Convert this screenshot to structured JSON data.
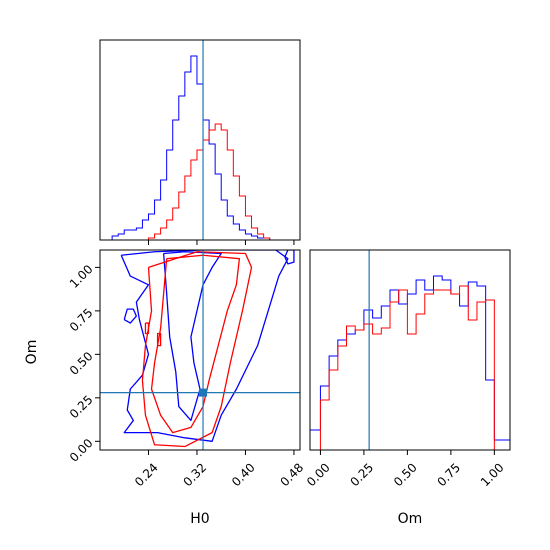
{
  "chart_data": {
    "type": "corner",
    "parameters": [
      "H0",
      "Om"
    ],
    "truth": {
      "H0": 0.33,
      "Om": 0.28
    },
    "truth_color": "#1f77b4",
    "series_colors": [
      "#0000ff",
      "#ff0000"
    ],
    "panels": [
      {
        "id": "hist-H0",
        "type": "histogram",
        "xlim": [
          0.16,
          0.49
        ],
        "ylim": [
          0,
          1.0
        ],
        "xticks": [
          0.24,
          0.32,
          0.4,
          0.48
        ],
        "series": [
          {
            "color": "#0000ff",
            "edges": [
              0.18,
              0.19,
              0.2,
              0.21,
              0.22,
              0.23,
              0.24,
              0.25,
              0.26,
              0.27,
              0.28,
              0.29,
              0.3,
              0.31,
              0.32,
              0.33,
              0.34,
              0.35,
              0.36,
              0.37,
              0.38,
              0.39,
              0.4,
              0.41,
              0.42,
              0.43,
              0.44
            ],
            "values": [
              0.02,
              0.03,
              0.05,
              0.05,
              0.06,
              0.1,
              0.13,
              0.2,
              0.3,
              0.45,
              0.6,
              0.72,
              0.84,
              0.92,
              0.78,
              0.6,
              0.48,
              0.33,
              0.2,
              0.12,
              0.08,
              0.05,
              0.03,
              0.02,
              0.01,
              0.01
            ]
          },
          {
            "color": "#ff0000",
            "edges": [
              0.24,
              0.25,
              0.26,
              0.27,
              0.28,
              0.29,
              0.3,
              0.31,
              0.32,
              0.33,
              0.34,
              0.35,
              0.36,
              0.37,
              0.38,
              0.39,
              0.4,
              0.41,
              0.42,
              0.43,
              0.44
            ],
            "values": [
              0.01,
              0.03,
              0.06,
              0.1,
              0.16,
              0.24,
              0.32,
              0.4,
              0.45,
              0.5,
              0.55,
              0.58,
              0.55,
              0.45,
              0.32,
              0.22,
              0.12,
              0.06,
              0.03,
              0.01
            ]
          }
        ]
      },
      {
        "id": "hist-Om",
        "type": "histogram",
        "xlim": [
          -0.06,
          1.09
        ],
        "ylim": [
          0,
          1.0
        ],
        "xticks": [
          0.0,
          0.25,
          0.5,
          0.75,
          1.0
        ],
        "xticklabels": [
          "0.00",
          "0.25",
          "0.50",
          "0.75",
          "1.00"
        ],
        "xlabel": "Om",
        "series": [
          {
            "color": "#0000ff",
            "edges": [
              -0.06,
              0.0,
              0.05,
              0.1,
              0.15,
              0.2,
              0.25,
              0.3,
              0.35,
              0.4,
              0.45,
              0.5,
              0.55,
              0.6,
              0.65,
              0.7,
              0.75,
              0.8,
              0.85,
              0.9,
              0.95,
              1.0,
              1.05,
              1.09
            ],
            "values": [
              0.1,
              0.32,
              0.47,
              0.55,
              0.58,
              0.6,
              0.7,
              0.66,
              0.72,
              0.8,
              0.73,
              0.78,
              0.85,
              0.8,
              0.87,
              0.85,
              0.78,
              0.72,
              0.84,
              0.82,
              0.35,
              0.05,
              0.05
            ]
          },
          {
            "color": "#ff0000",
            "edges": [
              0.0,
              0.05,
              0.1,
              0.15,
              0.2,
              0.25,
              0.3,
              0.35,
              0.4,
              0.45,
              0.5,
              0.55,
              0.6,
              0.65,
              0.7,
              0.75,
              0.8,
              0.85,
              0.9,
              0.95,
              1.0
            ],
            "values": [
              0.25,
              0.4,
              0.52,
              0.62,
              0.6,
              0.63,
              0.58,
              0.61,
              0.74,
              0.8,
              0.58,
              0.68,
              0.78,
              0.8,
              0.8,
              0.78,
              0.82,
              0.65,
              0.74,
              0.75
            ]
          }
        ]
      },
      {
        "id": "contour-H0-Om",
        "type": "contour",
        "xlim": [
          0.16,
          0.49
        ],
        "ylim": [
          -0.05,
          1.1
        ],
        "xticks": [
          0.24,
          0.32,
          0.4,
          0.48
        ],
        "xticklabels": [
          "0.24",
          "0.32",
          "0.40",
          "0.48"
        ],
        "yticks": [
          0.0,
          0.25,
          0.5,
          0.75,
          1.0
        ],
        "yticklabels": [
          "0.00",
          "0.25",
          "0.50",
          "0.75",
          "1.00"
        ],
        "xlabel": "H0",
        "ylabel": "Om",
        "series": [
          {
            "color": "#0000ff",
            "contours": [
              [
                [
                  0.265,
                  1.08
                ],
                [
                  0.27,
                  0.85
                ],
                [
                  0.275,
                  0.6
                ],
                [
                  0.285,
                  0.4
                ],
                [
                  0.29,
                  0.2
                ],
                [
                  0.31,
                  0.12
                ],
                [
                  0.325,
                  0.3
                ],
                [
                  0.315,
                  0.45
                ],
                [
                  0.31,
                  0.6
                ],
                [
                  0.32,
                  0.75
                ],
                [
                  0.33,
                  0.9
                ],
                [
                  0.345,
                  1.0
                ],
                [
                  0.36,
                  1.08
                ],
                [
                  0.3,
                  1.09
                ],
                [
                  0.265,
                  1.08
                ]
              ],
              [
                [
                  0.195,
                  1.07
                ],
                [
                  0.25,
                  1.09
                ],
                [
                  0.33,
                  1.1
                ],
                [
                  0.45,
                  1.1
                ],
                [
                  0.47,
                  1.05
                ],
                [
                  0.455,
                  0.95
                ],
                [
                  0.42,
                  0.55
                ],
                [
                  0.385,
                  0.3
                ],
                [
                  0.36,
                  0.15
                ],
                [
                  0.345,
                  0.0
                ],
                [
                  0.3,
                  0.02
                ],
                [
                  0.255,
                  0.05
                ],
                [
                  0.23,
                  0.05
                ],
                [
                  0.2,
                  0.05
                ],
                [
                  0.215,
                  0.12
                ],
                [
                  0.205,
                  0.18
                ],
                [
                  0.21,
                  0.3
                ],
                [
                  0.23,
                  0.38
                ],
                [
                  0.24,
                  0.5
                ],
                [
                  0.225,
                  0.7
                ],
                [
                  0.22,
                  0.8
                ],
                [
                  0.24,
                  0.9
                ],
                [
                  0.21,
                  0.95
                ],
                [
                  0.195,
                  1.07
                ]
              ],
              [
                [
                  0.2,
                  0.7
                ],
                [
                  0.205,
                  0.76
                ],
                [
                  0.215,
                  0.76
                ],
                [
                  0.22,
                  0.72
                ],
                [
                  0.21,
                  0.68
                ],
                [
                  0.2,
                  0.7
                ]
              ],
              [
                [
                  0.465,
                  1.06
                ],
                [
                  0.47,
                  1.1
                ],
                [
                  0.48,
                  1.1
                ],
                [
                  0.48,
                  1.03
                ],
                [
                  0.47,
                  1.02
                ],
                [
                  0.465,
                  1.06
                ]
              ]
            ]
          },
          {
            "color": "#ff0000",
            "contours": [
              [
                [
                  0.27,
                  1.05
                ],
                [
                  0.265,
                  0.85
                ],
                [
                  0.26,
                  0.65
                ],
                [
                  0.25,
                  0.45
                ],
                [
                  0.245,
                  0.3
                ],
                [
                  0.26,
                  0.15
                ],
                [
                  0.28,
                  0.05
                ],
                [
                  0.31,
                  0.08
                ],
                [
                  0.33,
                  0.2
                ],
                [
                  0.34,
                  0.35
                ],
                [
                  0.355,
                  0.55
                ],
                [
                  0.37,
                  0.75
                ],
                [
                  0.385,
                  0.9
                ],
                [
                  0.39,
                  1.05
                ],
                [
                  0.33,
                  1.07
                ],
                [
                  0.27,
                  1.05
                ]
              ],
              [
                [
                  0.24,
                  1.0
                ],
                [
                  0.245,
                  0.75
                ],
                [
                  0.235,
                  0.55
                ],
                [
                  0.23,
                  0.35
                ],
                [
                  0.235,
                  0.15
                ],
                [
                  0.25,
                  -0.02
                ],
                [
                  0.3,
                  -0.03
                ],
                [
                  0.345,
                  0.05
                ],
                [
                  0.36,
                  0.2
                ],
                [
                  0.375,
                  0.45
                ],
                [
                  0.395,
                  0.75
                ],
                [
                  0.41,
                  1.0
                ],
                [
                  0.4,
                  1.08
                ],
                [
                  0.32,
                  1.09
                ],
                [
                  0.24,
                  1.0
                ]
              ],
              [
                [
                  0.235,
                  0.68
                ],
                [
                  0.235,
                  0.62
                ],
                [
                  0.24,
                  0.62
                ],
                [
                  0.24,
                  0.68
                ],
                [
                  0.235,
                  0.68
                ]
              ],
              [
                [
                  0.255,
                  0.55
                ],
                [
                  0.255,
                  0.62
                ],
                [
                  0.26,
                  0.62
                ],
                [
                  0.26,
                  0.55
                ],
                [
                  0.255,
                  0.55
                ]
              ]
            ]
          }
        ]
      }
    ]
  }
}
